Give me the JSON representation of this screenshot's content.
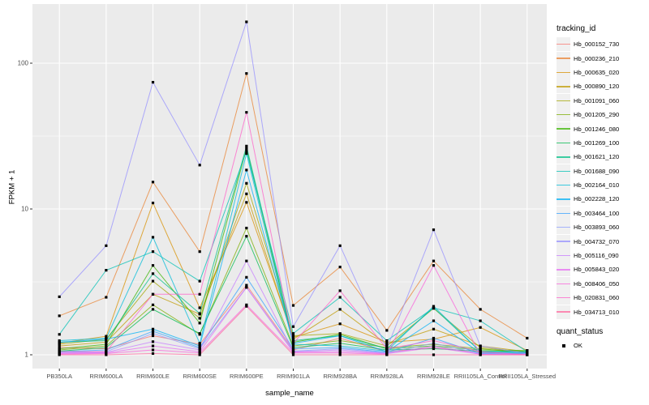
{
  "axes": {
    "x_title": "sample_name",
    "y_title": "FPKM + 1"
  },
  "legend": {
    "tracking_title": "tracking_id",
    "quant_title": "quant_status",
    "quant_entries": [
      {
        "label": "OK"
      }
    ]
  },
  "colors": {
    "panel_bg": "#EBEBEB",
    "grid": "#FFFFFF",
    "tick_text": "#4D4D4D",
    "tick_mark": "#333333",
    "point": "#000000"
  },
  "chart_data": {
    "type": "line",
    "title": "",
    "xlabel": "sample_name",
    "ylabel": "FPKM + 1",
    "y_scale": "log10",
    "ylim": [
      1,
      230
    ],
    "y_ticks": [
      1,
      10,
      100
    ],
    "y_minor_ticks": [
      3.162,
      31.62
    ],
    "grid": "on",
    "legend_position": "right",
    "point_shape": "square",
    "categories": [
      "PB350LA",
      "RRIM600LA",
      "RRIM600LE",
      "RRIM600SE",
      "RRIM600PE",
      "RRIM901LA",
      "RRIM928BA",
      "RRIM928LA",
      "RRIM928LE",
      "RRII105LA_Control",
      "RRII105LA_Stressed"
    ],
    "series": [
      {
        "name": "Hb_000152_730",
        "color": "#F8766D",
        "values": [
          1.12,
          1.1,
          1.35,
          1.18,
          3.0,
          1.08,
          1.3,
          1.05,
          1.12,
          1.04,
          1.02
        ]
      },
      {
        "name": "Hb_000236_210",
        "color": "#EA8331",
        "values": [
          1.85,
          2.48,
          15.3,
          5.1,
          85,
          2.18,
          4.0,
          1.47,
          4.4,
          2.05,
          1.3
        ]
      },
      {
        "name": "Hb_000635_020",
        "color": "#D89000",
        "values": [
          1.2,
          1.34,
          11.0,
          2.1,
          11.1,
          1.32,
          1.63,
          1.22,
          1.28,
          1.54,
          1.07
        ]
      },
      {
        "name": "Hb_000890_120",
        "color": "#C09B00",
        "values": [
          1.15,
          1.22,
          2.6,
          1.9,
          12.7,
          1.28,
          2.05,
          1.18,
          1.5,
          1.15,
          1.05
        ]
      },
      {
        "name": "Hb_001091_060",
        "color": "#A3A500",
        "values": [
          1.18,
          1.28,
          3.2,
          1.78,
          15.0,
          1.35,
          1.4,
          1.15,
          2.08,
          1.12,
          1.04
        ]
      },
      {
        "name": "Hb_001205_290",
        "color": "#7CAE00",
        "values": [
          1.08,
          1.15,
          2.2,
          1.38,
          7.4,
          1.15,
          1.25,
          1.12,
          1.18,
          1.1,
          1.03
        ]
      },
      {
        "name": "Hb_001246_080",
        "color": "#39B600",
        "values": [
          1.1,
          1.18,
          4.1,
          1.65,
          26,
          1.22,
          1.38,
          1.1,
          1.15,
          1.08,
          1.07
        ]
      },
      {
        "name": "Hb_001269_100",
        "color": "#00BB4E",
        "values": [
          1.06,
          1.12,
          2.05,
          1.4,
          6.5,
          1.12,
          1.2,
          1.08,
          1.1,
          1.06,
          1.05
        ]
      },
      {
        "name": "Hb_001621_120",
        "color": "#00C087",
        "values": [
          1.22,
          1.25,
          3.6,
          1.92,
          27,
          1.25,
          1.35,
          1.1,
          2.1,
          1.05,
          1.05
        ]
      },
      {
        "name": "Hb_001688_090",
        "color": "#00C0B4",
        "values": [
          1.38,
          3.8,
          5.1,
          3.2,
          25,
          1.4,
          2.48,
          1.25,
          2.1,
          1.71,
          1.05
        ]
      },
      {
        "name": "Hb_002164_010",
        "color": "#00BCD8",
        "values": [
          1.25,
          1.3,
          6.4,
          1.2,
          24,
          1.18,
          1.15,
          1.06,
          2.15,
          1.05,
          1.04
        ]
      },
      {
        "name": "Hb_002228_120",
        "color": "#00B0F6",
        "values": [
          1.22,
          1.28,
          1.5,
          1.15,
          18.5,
          1.2,
          1.35,
          1.05,
          1.71,
          1.03,
          1.03
        ]
      },
      {
        "name": "Hb_003464_100",
        "color": "#35A2FF",
        "values": [
          1.05,
          1.08,
          1.45,
          1.12,
          3.4,
          1.1,
          1.12,
          1.04,
          1.3,
          1.02,
          1.02
        ]
      },
      {
        "name": "Hb_003893_060",
        "color": "#8C9DFF",
        "values": [
          1.04,
          1.05,
          1.4,
          1.1,
          2.9,
          1.06,
          1.1,
          1.03,
          1.2,
          1.02,
          1.01
        ]
      },
      {
        "name": "Hb_004732_070",
        "color": "#9590FF",
        "values": [
          2.5,
          5.6,
          74,
          20,
          192,
          1.56,
          5.6,
          1.1,
          7.2,
          1.15,
          1.02
        ]
      },
      {
        "name": "Hb_005116_090",
        "color": "#C77CFF",
        "values": [
          1.03,
          1.04,
          1.23,
          1.08,
          4.4,
          1.05,
          1.08,
          1.02,
          1.15,
          1.01,
          1.01
        ]
      },
      {
        "name": "Hb_005843_020",
        "color": "#E76BF3",
        "values": [
          1.02,
          1.03,
          1.15,
          1.05,
          2.9,
          1.04,
          1.05,
          1.02,
          1.12,
          1.01,
          1.0
        ]
      },
      {
        "name": "Hb_008406_050",
        "color": "#FA62DB",
        "values": [
          1.01,
          1.02,
          1.08,
          1.03,
          2.2,
          1.03,
          1.03,
          1.01,
          4.1,
          1.0,
          1.0
        ]
      },
      {
        "name": "Hb_020831_060",
        "color": "#FF61C9",
        "values": [
          1.05,
          1.05,
          2.6,
          2.6,
          46,
          1.2,
          2.75,
          1.1,
          1.25,
          1.05,
          1.0
        ]
      },
      {
        "name": "Hb_034713_010",
        "color": "#FF689E",
        "values": [
          1.0,
          1.0,
          1.02,
          1.0,
          2.15,
          1.0,
          1.0,
          1.0,
          1.0,
          1.0,
          1.0
        ]
      }
    ]
  }
}
